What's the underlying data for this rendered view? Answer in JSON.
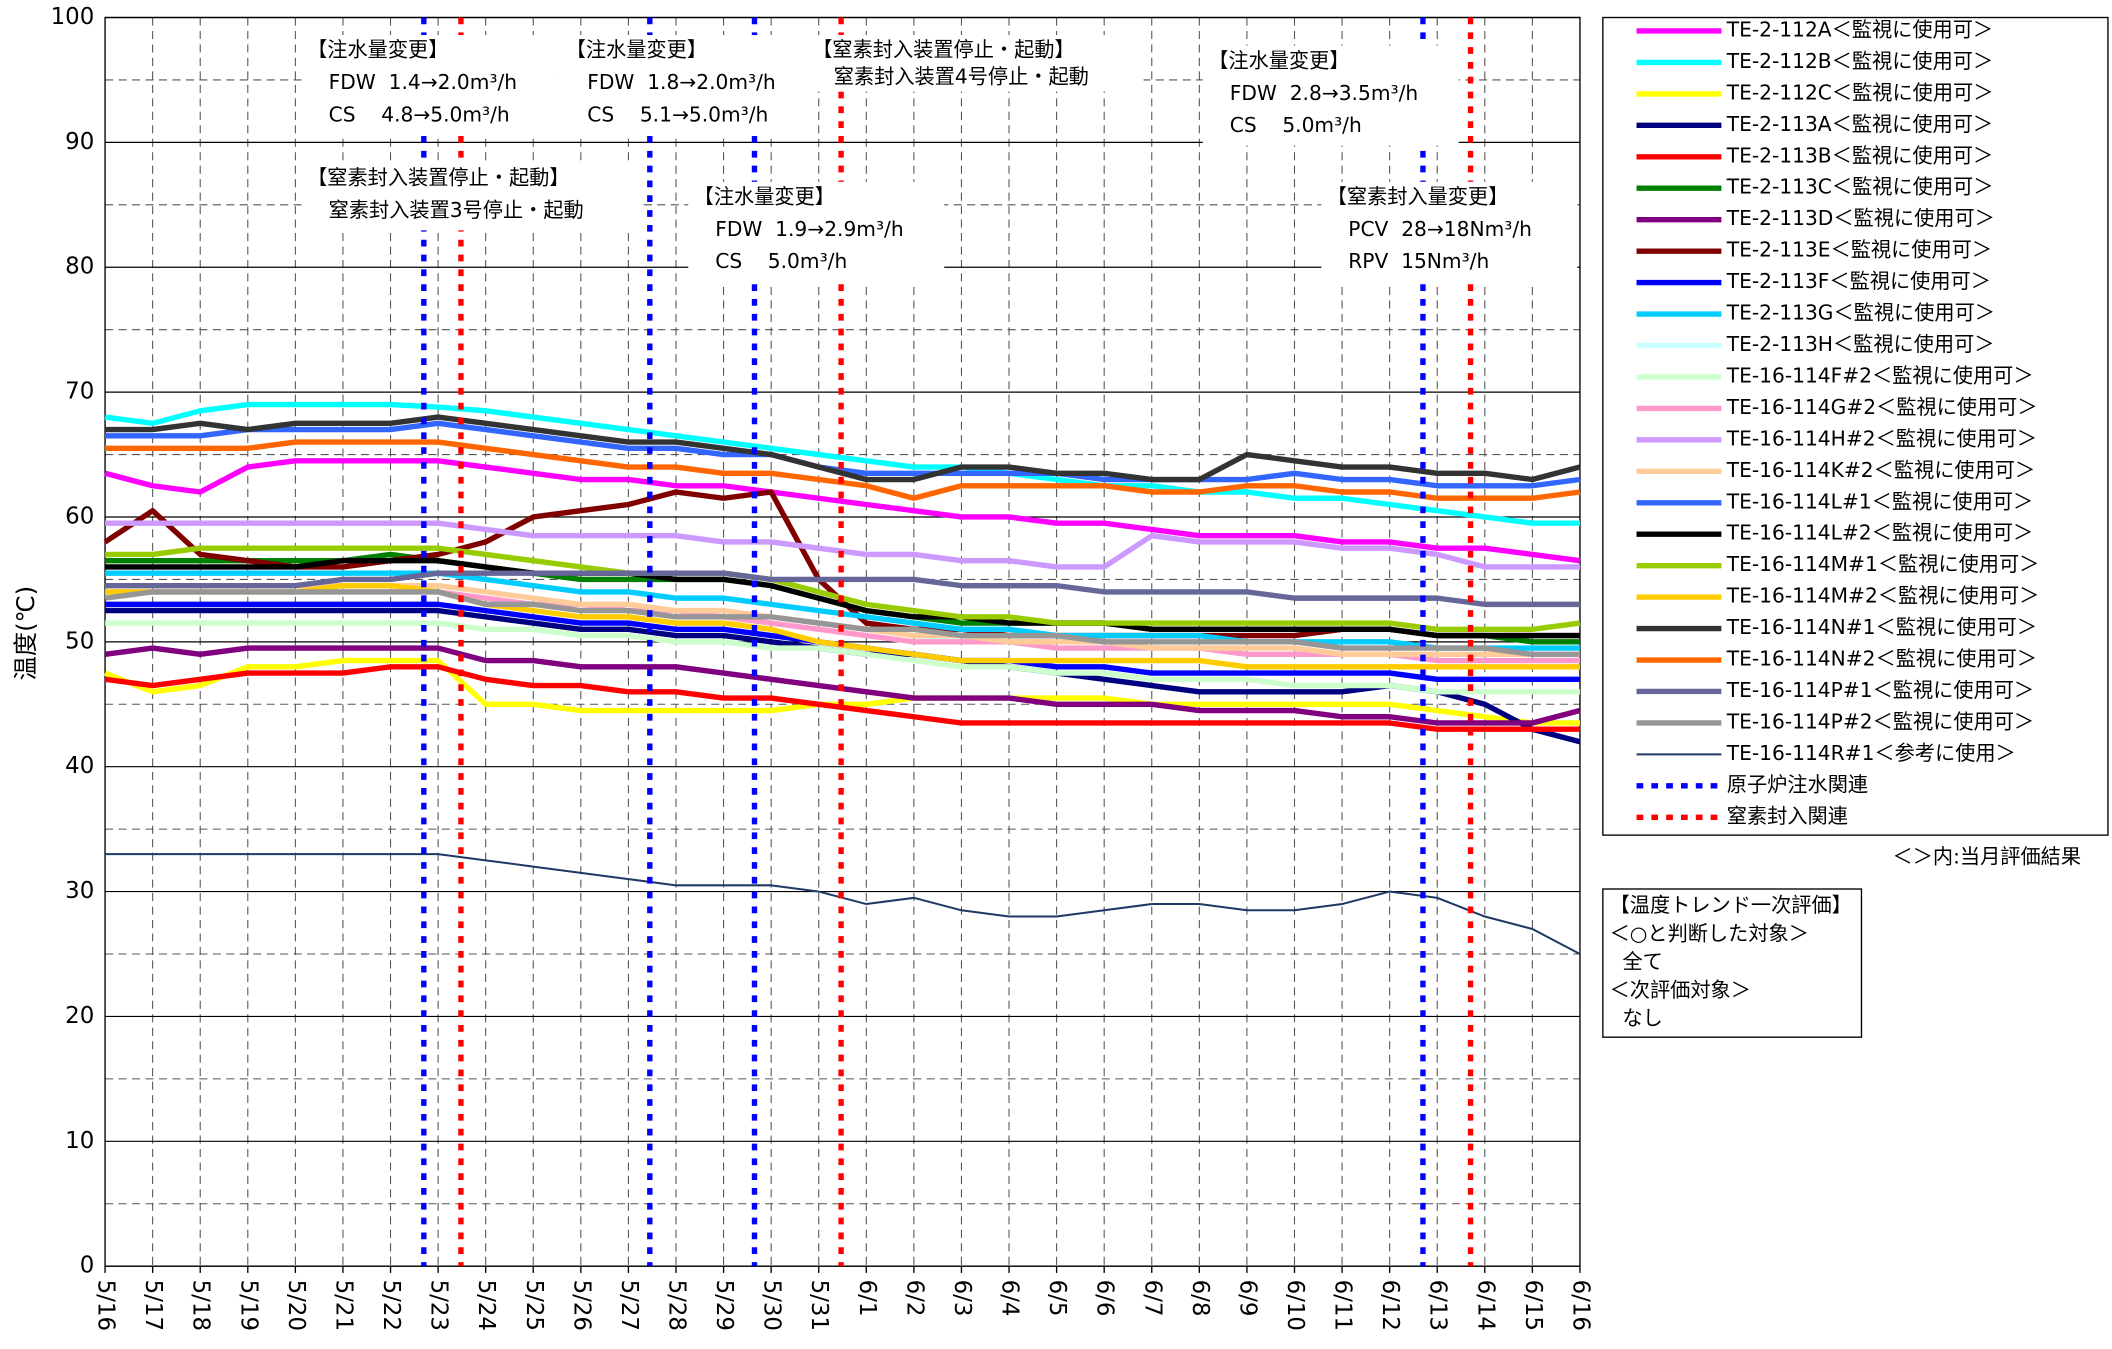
{
  "chart_data": {
    "type": "line",
    "y_label": "温度(℃)",
    "categories": [
      "5/16",
      "5/17",
      "5/18",
      "5/19",
      "5/20",
      "5/21",
      "5/22",
      "5/23",
      "5/24",
      "5/25",
      "5/26",
      "5/27",
      "5/28",
      "5/29",
      "5/30",
      "5/31",
      "6/1",
      "6/2",
      "6/3",
      "6/4",
      "6/5",
      "6/6",
      "6/7",
      "6/8",
      "6/9",
      "6/10",
      "6/11",
      "6/12",
      "6/13",
      "6/14",
      "6/15",
      "6/16"
    ],
    "ylim": [
      0,
      100
    ],
    "yticks": [
      0,
      10,
      20,
      30,
      40,
      50,
      60,
      70,
      80,
      90,
      100
    ],
    "y_minor_ticks": [
      5,
      15,
      25,
      35,
      45,
      55,
      65,
      75,
      85,
      95
    ],
    "grid": true,
    "legend": "right",
    "series": [
      {
        "name": "TE-2-112A＜監視に使用可＞",
        "color": "#ff00ff",
        "linewidth": 4,
        "values": [
          63.5,
          62.5,
          62,
          64,
          64.5,
          64.5,
          64.5,
          64.5,
          64,
          63.5,
          63,
          63,
          62.5,
          62.5,
          62,
          61.5,
          61,
          60.5,
          60,
          60,
          59.5,
          59.5,
          59,
          58.5,
          58.5,
          58.5,
          58,
          58,
          57.5,
          57.5,
          57,
          56.5
        ]
      },
      {
        "name": "TE-2-112B＜監視に使用可＞",
        "color": "#00ffff",
        "linewidth": 4,
        "values": [
          68,
          67.5,
          68.5,
          69,
          69,
          69,
          69,
          68.8,
          68.5,
          68,
          67.5,
          67,
          66.5,
          66,
          65.5,
          65,
          64.5,
          64,
          64,
          63.5,
          63,
          62.5,
          62.5,
          62,
          62,
          61.5,
          61.5,
          61,
          60.5,
          60,
          59.5,
          59.5
        ]
      },
      {
        "name": "TE-2-112C＜監視に使用可＞",
        "color": "#ffff00",
        "linewidth": 4,
        "values": [
          47.5,
          46,
          46.5,
          48,
          48,
          48.5,
          48.5,
          48.5,
          45,
          45,
          44.5,
          44.5,
          44.5,
          44.5,
          44.5,
          45,
          45,
          45.5,
          45.5,
          45.5,
          45.5,
          45.5,
          45,
          45,
          45,
          45,
          45,
          45,
          44.5,
          44,
          43.5,
          43.5
        ]
      },
      {
        "name": "TE-2-113A＜監視に使用可＞",
        "color": "#000080",
        "linewidth": 4,
        "values": [
          52.5,
          52.5,
          52.5,
          52.5,
          52.5,
          52.5,
          52.5,
          52.5,
          52,
          51.5,
          51,
          51,
          50.5,
          50.5,
          50,
          49.5,
          49,
          49,
          48.5,
          48,
          47.5,
          47,
          46.5,
          46,
          46,
          46,
          46,
          46.5,
          46,
          45,
          43,
          42
        ]
      },
      {
        "name": "TE-2-113B＜監視に使用可＞",
        "color": "#ff0000",
        "linewidth": 4,
        "values": [
          47,
          46.5,
          47,
          47.5,
          47.5,
          47.5,
          48,
          48,
          47,
          46.5,
          46.5,
          46,
          46,
          45.5,
          45.5,
          45,
          44.5,
          44,
          43.5,
          43.5,
          43.5,
          43.5,
          43.5,
          43.5,
          43.5,
          43.5,
          43.5,
          43.5,
          43,
          43,
          43,
          43
        ]
      },
      {
        "name": "TE-2-113C＜監視に使用可＞",
        "color": "#008000",
        "linewidth": 4,
        "values": [
          56.5,
          56.5,
          56.5,
          56.5,
          56.5,
          56.5,
          57,
          56.5,
          56,
          55.5,
          55,
          55,
          55,
          55,
          54.5,
          53.5,
          52.5,
          52,
          51.5,
          51.5,
          51.5,
          51.5,
          51,
          51,
          51,
          51,
          51,
          51,
          50.5,
          50.5,
          50,
          50
        ]
      },
      {
        "name": "TE-2-113D＜監視に使用可＞",
        "color": "#800080",
        "linewidth": 4,
        "values": [
          49,
          49.5,
          49,
          49.5,
          49.5,
          49.5,
          49.5,
          49.5,
          48.5,
          48.5,
          48,
          48,
          48,
          47.5,
          47,
          46.5,
          46,
          45.5,
          45.5,
          45.5,
          45,
          45,
          45,
          44.5,
          44.5,
          44.5,
          44,
          44,
          43.5,
          43.5,
          43.5,
          44.5
        ]
      },
      {
        "name": "TE-2-113E＜監視に使用可＞",
        "color": "#800000",
        "linewidth": 4,
        "values": [
          58,
          60.5,
          57,
          56.5,
          56,
          56,
          56.5,
          57,
          58,
          60,
          60.5,
          61,
          62,
          61.5,
          62,
          55,
          51.5,
          51,
          51,
          50.5,
          50.5,
          50.5,
          50.5,
          50.5,
          50.5,
          50.5,
          51,
          51,
          50.5,
          50.5,
          50.5,
          50.5
        ]
      },
      {
        "name": "TE-2-113F＜監視に使用可＞",
        "color": "#0000ff",
        "linewidth": 4,
        "values": [
          53,
          53,
          53,
          53,
          53,
          53,
          53,
          53,
          52.5,
          52,
          51.5,
          51.5,
          51,
          51,
          50.5,
          50,
          49.5,
          49,
          48.5,
          48.5,
          48,
          48,
          47.5,
          47.5,
          47.5,
          47.5,
          47.5,
          47.5,
          47,
          47,
          47,
          47
        ]
      },
      {
        "name": "TE-2-113G＜監視に使用可＞",
        "color": "#00ccff",
        "linewidth": 4,
        "values": [
          55.5,
          55.5,
          55.5,
          55.5,
          55.5,
          55.5,
          55.5,
          55.5,
          55,
          54.5,
          54,
          54,
          53.5,
          53.5,
          53,
          52.5,
          52,
          51.5,
          51,
          51,
          50.5,
          50.5,
          50.5,
          50.5,
          50,
          50,
          50,
          50,
          49.5,
          49.5,
          49.5,
          49.5
        ]
      },
      {
        "name": "TE-2-113H＜監視に使用可＞",
        "color": "#ccffff",
        "linewidth": 4,
        "values": [
          54.5,
          54.5,
          54.5,
          54.5,
          54.5,
          54.5,
          54.5,
          54.5,
          54,
          53.5,
          53,
          53,
          52.5,
          52.5,
          52,
          51.5,
          51,
          50.5,
          50,
          50,
          49.5,
          49.5,
          49.5,
          49.5,
          49,
          49,
          49,
          49,
          48.5,
          48.5,
          48.5,
          48.5
        ]
      },
      {
        "name": "TE-16-114F#2＜監視に使用可＞",
        "color": "#ccffcc",
        "linewidth": 4,
        "values": [
          51.5,
          51.5,
          51.5,
          51.5,
          51.5,
          51.5,
          51.5,
          51.5,
          51,
          51,
          50.5,
          50.5,
          50,
          50,
          49.5,
          49.5,
          49,
          48.5,
          48,
          48,
          47.5,
          47.5,
          47,
          47,
          47,
          46.5,
          46.5,
          46.5,
          46,
          46,
          46,
          46
        ]
      },
      {
        "name": "TE-16-114G#2＜監視に使用可＞",
        "color": "#ff99cc",
        "linewidth": 4,
        "values": [
          54,
          54,
          54,
          54,
          54,
          54,
          54,
          54,
          53.5,
          53,
          53,
          52.5,
          52.5,
          52,
          51.5,
          51,
          50.5,
          50,
          50,
          50,
          49.5,
          49.5,
          49.5,
          49.5,
          49,
          49,
          49,
          49,
          48.5,
          48.5,
          48.5,
          48.5
        ]
      },
      {
        "name": "TE-16-114H#2＜監視に使用可＞",
        "color": "#cc99ff",
        "linewidth": 4,
        "values": [
          59.5,
          59.5,
          59.5,
          59.5,
          59.5,
          59.5,
          59.5,
          59.5,
          59,
          58.5,
          58.5,
          58.5,
          58.5,
          58,
          58,
          57.5,
          57,
          57,
          56.5,
          56.5,
          56,
          56,
          58.5,
          58,
          58,
          58,
          57.5,
          57.5,
          57,
          56,
          56,
          56
        ]
      },
      {
        "name": "TE-16-114K#2＜監視に使用可＞",
        "color": "#ffcc99",
        "linewidth": 4,
        "values": [
          54.5,
          54.5,
          54.5,
          54.5,
          54.5,
          54.5,
          54.5,
          54.5,
          54,
          53.5,
          53,
          53,
          52.5,
          52.5,
          52,
          51.5,
          51,
          50.5,
          50.5,
          50,
          50,
          50,
          49.5,
          49.5,
          49.5,
          49.5,
          49,
          49,
          49,
          49,
          49,
          49
        ]
      },
      {
        "name": "TE-16-114L#1＜監視に使用可＞",
        "color": "#3366ff",
        "linewidth": 4,
        "values": [
          66.5,
          66.5,
          66.5,
          67,
          67,
          67,
          67,
          67.5,
          67,
          66.5,
          66,
          65.5,
          65.5,
          65,
          65,
          64,
          63.5,
          63.5,
          63.5,
          63.5,
          63.5,
          63,
          63,
          63,
          63,
          63.5,
          63,
          63,
          62.5,
          62.5,
          62.5,
          63
        ]
      },
      {
        "name": "TE-16-114L#2＜監視に使用可＞",
        "color": "#000000",
        "linewidth": 4,
        "values": [
          56,
          56,
          56,
          56,
          56,
          56.5,
          56.5,
          56.5,
          56,
          55.5,
          55.5,
          55.5,
          55,
          55,
          54.5,
          53.5,
          52.5,
          52,
          52,
          51.5,
          51.5,
          51.5,
          51,
          51,
          51,
          51,
          51,
          51,
          50.5,
          50.5,
          50.5,
          50.5
        ]
      },
      {
        "name": "TE-16-114M#1＜監視に使用可＞",
        "color": "#99cc00",
        "linewidth": 4,
        "values": [
          57,
          57,
          57.5,
          57.5,
          57.5,
          57.5,
          57.5,
          57.5,
          57,
          56.5,
          56,
          55.5,
          55.5,
          55.5,
          55,
          54,
          53,
          52.5,
          52,
          52,
          51.5,
          51.5,
          51.5,
          51.5,
          51.5,
          51.5,
          51.5,
          51.5,
          51,
          51,
          51,
          51.5
        ]
      },
      {
        "name": "TE-16-114M#2＜監視に使用可＞",
        "color": "#ffcc00",
        "linewidth": 4,
        "values": [
          54,
          54,
          54,
          54,
          54,
          54.5,
          54.5,
          54,
          53,
          52.5,
          52,
          52,
          51.5,
          51.5,
          51,
          50,
          49.5,
          49,
          48.5,
          48.5,
          48.5,
          48.5,
          48.5,
          48.5,
          48,
          48,
          48,
          48,
          48,
          48,
          48,
          48
        ]
      },
      {
        "name": "TE-16-114N#1＜監視に使用可＞",
        "color": "#333333",
        "linewidth": 4,
        "values": [
          67,
          67,
          67.5,
          67,
          67.5,
          67.5,
          67.5,
          68,
          67.5,
          67,
          66.5,
          66,
          66,
          65.5,
          65,
          64,
          63,
          63,
          64,
          64,
          63.5,
          63.5,
          63,
          63,
          65,
          64.5,
          64,
          64,
          63.5,
          63.5,
          63,
          64
        ]
      },
      {
        "name": "TE-16-114N#2＜監視に使用可＞",
        "color": "#ff6600",
        "linewidth": 4,
        "values": [
          65.5,
          65.5,
          65.5,
          65.5,
          66,
          66,
          66,
          66,
          65.5,
          65,
          64.5,
          64,
          64,
          63.5,
          63.5,
          63,
          62.5,
          61.5,
          62.5,
          62.5,
          62.5,
          62.5,
          62,
          62,
          62.5,
          62.5,
          62,
          62,
          61.5,
          61.5,
          61.5,
          62
        ]
      },
      {
        "name": "TE-16-114P#1＜監視に使用可＞",
        "color": "#666699",
        "linewidth": 4,
        "values": [
          54.5,
          54.5,
          54.5,
          54.5,
          54.5,
          55,
          55,
          55.5,
          55.5,
          55.5,
          55.5,
          55.5,
          55.5,
          55.5,
          55,
          55,
          55,
          55,
          54.5,
          54.5,
          54.5,
          54,
          54,
          54,
          54,
          53.5,
          53.5,
          53.5,
          53.5,
          53,
          53,
          53
        ]
      },
      {
        "name": "TE-16-114P#2＜監視に使用可＞",
        "color": "#969696",
        "linewidth": 4,
        "values": [
          53.5,
          54,
          54,
          54,
          54,
          54,
          54,
          54,
          53,
          53,
          52.5,
          52.5,
          52,
          52,
          52,
          51.5,
          51,
          51,
          50.5,
          50.5,
          50.5,
          50,
          50,
          50,
          50,
          50,
          49.5,
          49.5,
          49.5,
          49.5,
          49,
          49
        ]
      },
      {
        "name": "TE-16-114R#1＜参考に使用＞",
        "color": "#1f3864",
        "linewidth": 1.5,
        "values": [
          33,
          33,
          33,
          33,
          33,
          33,
          33,
          33,
          32.5,
          32,
          31.5,
          31,
          30.5,
          30.5,
          30.5,
          30,
          29,
          29.5,
          28.5,
          28,
          28,
          28.5,
          29,
          29,
          28.5,
          28.5,
          29,
          30,
          29.5,
          28,
          27,
          25
        ]
      }
    ],
    "reference_lines": [
      {
        "name": "原子炉注水関連",
        "color": "#0000ff",
        "x": [
          6.7,
          11.45,
          13.65,
          27.7
        ]
      },
      {
        "name": "窒素封入関連",
        "color": "#ff0000",
        "x": [
          7.48,
          15.47,
          28.7
        ]
      }
    ],
    "annotations": [
      {
        "lines": [
          "【注水量変更】",
          "FDW  1.4→2.0m³/h",
          "CS    4.8→5.0m³/h"
        ]
      },
      {
        "lines": [
          "【注水量変更】",
          "FDW  1.8→2.0m³/h",
          "CS    5.1→5.0m³/h"
        ]
      },
      {
        "lines": [
          "【窒素封入装置停止・起動】",
          "窒素封入装置4号停止・起動"
        ]
      },
      {
        "lines": [
          "【注水量変更】",
          "FDW  2.8→3.5m³/h",
          "CS    5.0m³/h"
        ]
      },
      {
        "lines": [
          "【窒素封入装置停止・起動】",
          "窒素封入装置3号停止・起動"
        ]
      },
      {
        "lines": [
          "【注水量変更】",
          "FDW  1.9→2.9m³/h",
          "CS    5.0m³/h"
        ]
      },
      {
        "lines": [
          "【窒素封入量変更】",
          "PCV  28→18Nm³/h",
          "RPV  15Nm³/h"
        ]
      }
    ],
    "legend_note": "＜＞内:当月評価結果",
    "evaluation": [
      "【温度トレンド一次評価】",
      "＜○と判断した対象＞",
      "  全て",
      "＜次評価対象＞",
      "  なし"
    ]
  }
}
